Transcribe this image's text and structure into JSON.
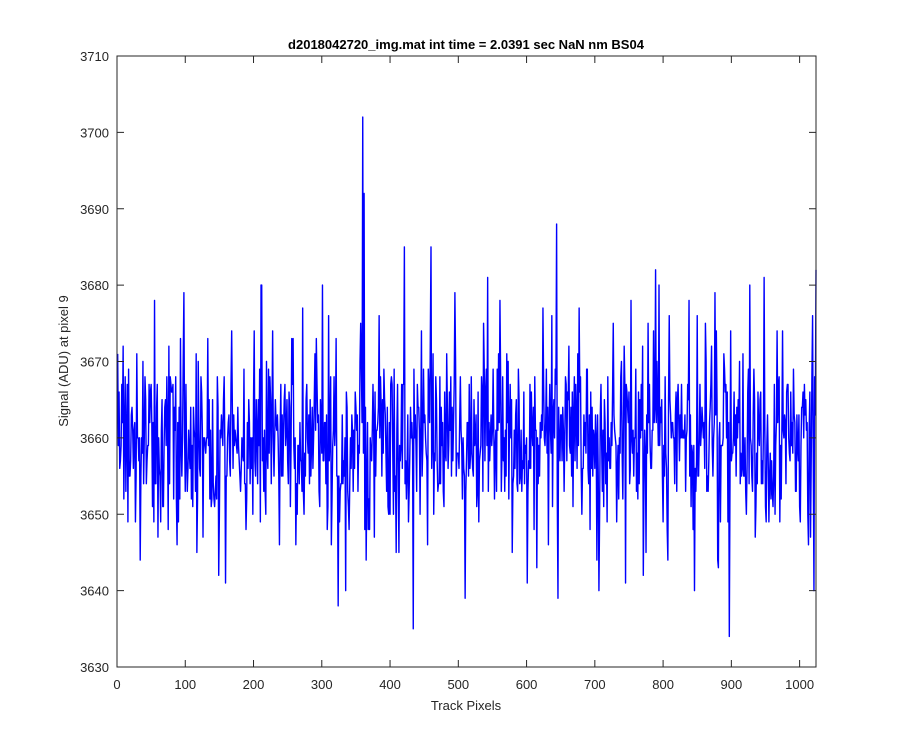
{
  "chart_data": {
    "type": "line",
    "title": "d2018042720_img.mat int time = 2.0391 sec  NaN nm BS04",
    "xlabel": "Track Pixels",
    "ylabel": "Signal (ADU) at pixel 9",
    "xlim": [
      0,
      1024
    ],
    "ylim": [
      3630,
      3710
    ],
    "xticks": [
      0,
      100,
      200,
      300,
      400,
      500,
      600,
      700,
      800,
      900,
      1000
    ],
    "yticks": [
      3630,
      3640,
      3650,
      3660,
      3670,
      3680,
      3690,
      3700,
      3710
    ],
    "grid": false,
    "legend": "none",
    "series_color": "#0000ff",
    "series": [
      {
        "n_points": 1024,
        "baseline": 3660,
        "noise_std": 6.5,
        "min": 3634,
        "max": 3702,
        "notable_points": [
          {
            "x": 33,
            "y": 3644
          },
          {
            "x": 54,
            "y": 3678
          },
          {
            "x": 97,
            "y": 3679
          },
          {
            "x": 148,
            "y": 3642
          },
          {
            "x": 227,
            "y": 3674
          },
          {
            "x": 271,
            "y": 3677
          },
          {
            "x": 300,
            "y": 3680
          },
          {
            "x": 323,
            "y": 3638
          },
          {
            "x": 334,
            "y": 3640
          },
          {
            "x": 359,
            "y": 3702
          },
          {
            "x": 361,
            "y": 3692
          },
          {
            "x": 420,
            "y": 3685
          },
          {
            "x": 433,
            "y": 3635
          },
          {
            "x": 459,
            "y": 3685
          },
          {
            "x": 494,
            "y": 3679
          },
          {
            "x": 509,
            "y": 3639
          },
          {
            "x": 542,
            "y": 3681
          },
          {
            "x": 560,
            "y": 3678
          },
          {
            "x": 578,
            "y": 3645
          },
          {
            "x": 600,
            "y": 3641
          },
          {
            "x": 643,
            "y": 3688
          },
          {
            "x": 645,
            "y": 3639
          },
          {
            "x": 676,
            "y": 3677
          },
          {
            "x": 705,
            "y": 3640
          },
          {
            "x": 752,
            "y": 3678
          },
          {
            "x": 788,
            "y": 3682
          },
          {
            "x": 806,
            "y": 3644
          },
          {
            "x": 845,
            "y": 3640
          },
          {
            "x": 875,
            "y": 3679
          },
          {
            "x": 896,
            "y": 3634
          },
          {
            "x": 926,
            "y": 3680
          },
          {
            "x": 947,
            "y": 3681
          },
          {
            "x": 1012,
            "y": 3646
          },
          {
            "x": 1020,
            "y": 3640
          },
          {
            "x": 1023,
            "y": 3682
          }
        ]
      }
    ]
  }
}
